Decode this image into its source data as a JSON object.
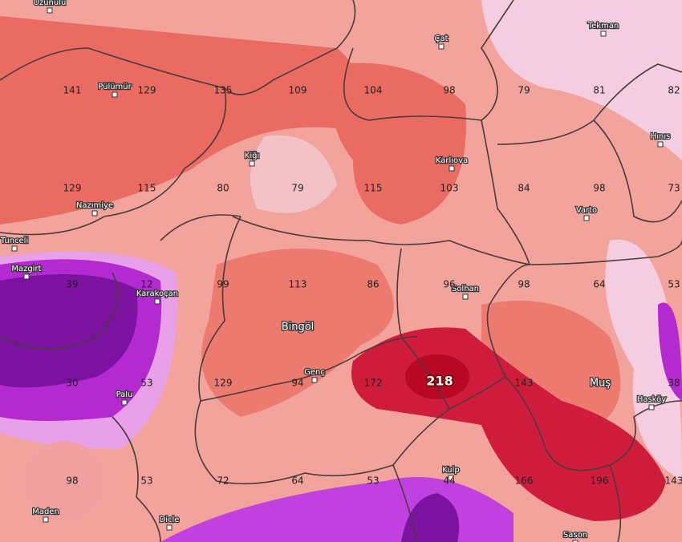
{
  "places": [
    {
      "name": "Uzunulu"
    },
    {
      "name": "Pülümür"
    },
    {
      "name": "Çat"
    },
    {
      "name": "Tekman"
    },
    {
      "name": "Kiğı"
    },
    {
      "name": "Hınıs"
    },
    {
      "name": "Karlıova"
    },
    {
      "name": "Nazımiye"
    },
    {
      "name": "Varto"
    },
    {
      "name": "Tunceli"
    },
    {
      "name": "Mazgirt"
    },
    {
      "name": "Karakoçan"
    },
    {
      "name": "Solhan"
    },
    {
      "name": "Bingöl"
    },
    {
      "name": "Genç"
    },
    {
      "name": "Muş"
    },
    {
      "name": "Palu"
    },
    {
      "name": "Hasköy"
    },
    {
      "name": "Kulp"
    },
    {
      "name": "Maden"
    },
    {
      "name": "Dicle"
    },
    {
      "name": "Sason"
    }
  ],
  "values": [
    141,
    129,
    135,
    109,
    104,
    98,
    79,
    81,
    82,
    129,
    115,
    80,
    79,
    115,
    103,
    84,
    98,
    73,
    39,
    12,
    99,
    113,
    86,
    96,
    98,
    64,
    53,
    30,
    53,
    129,
    94,
    172,
    218,
    143,
    38,
    98,
    53,
    72,
    64,
    53,
    44,
    166,
    196,
    143
  ]
}
